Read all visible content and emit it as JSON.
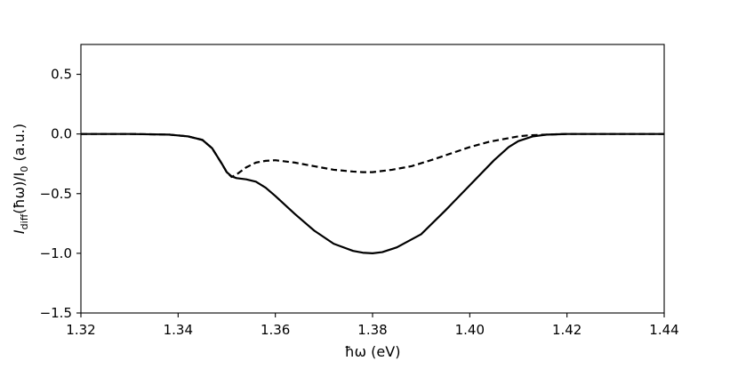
{
  "chart_data": {
    "type": "line",
    "title": "",
    "xlabel": "ħω (eV)",
    "ylabel_parts": {
      "main": "I",
      "main_sub": "diff",
      "middle": "(ħω)/I",
      "middle_sub": "0",
      "suffix": " (a.u.)"
    },
    "xlim": [
      1.32,
      1.44
    ],
    "ylim": [
      -1.5,
      0.75
    ],
    "xticks": [
      1.32,
      1.34,
      1.36,
      1.38,
      1.4,
      1.42,
      1.44
    ],
    "xtick_labels": [
      "1.32",
      "1.34",
      "1.36",
      "1.38",
      "1.40",
      "1.42",
      "1.44"
    ],
    "yticks": [
      0.5,
      0.0,
      -0.5,
      -1.0,
      -1.5
    ],
    "ytick_labels": [
      "0.5",
      "0.0",
      "−0.5",
      "−1.0",
      "−1.5"
    ],
    "grid": false,
    "legend": "none",
    "series": [
      {
        "style": "solid",
        "color": "#000000",
        "x": [
          1.32,
          1.33,
          1.338,
          1.342,
          1.345,
          1.347,
          1.349,
          1.35,
          1.351,
          1.352,
          1.354,
          1.356,
          1.358,
          1.36,
          1.364,
          1.368,
          1.372,
          1.376,
          1.378,
          1.38,
          1.382,
          1.385,
          1.39,
          1.395,
          1.4,
          1.405,
          1.408,
          1.41,
          1.413,
          1.416,
          1.42,
          1.43,
          1.44
        ],
        "y": [
          0.0,
          0.0,
          -0.005,
          -0.02,
          -0.05,
          -0.12,
          -0.25,
          -0.32,
          -0.355,
          -0.37,
          -0.38,
          -0.4,
          -0.45,
          -0.52,
          -0.67,
          -0.81,
          -0.92,
          -0.98,
          -0.995,
          -1.0,
          -0.99,
          -0.95,
          -0.84,
          -0.64,
          -0.43,
          -0.22,
          -0.11,
          -0.06,
          -0.02,
          -0.005,
          0.0,
          0.0,
          0.0
        ]
      },
      {
        "style": "dashed",
        "color": "#000000",
        "x": [
          1.32,
          1.33,
          1.338,
          1.342,
          1.345,
          1.347,
          1.349,
          1.35,
          1.351,
          1.352,
          1.354,
          1.356,
          1.358,
          1.36,
          1.364,
          1.368,
          1.372,
          1.376,
          1.378,
          1.38,
          1.384,
          1.388,
          1.392,
          1.396,
          1.4,
          1.404,
          1.408,
          1.41,
          1.412,
          1.416,
          1.42,
          1.43,
          1.44
        ],
        "y": [
          0.0,
          0.0,
          -0.005,
          -0.02,
          -0.05,
          -0.12,
          -0.25,
          -0.32,
          -0.36,
          -0.34,
          -0.28,
          -0.24,
          -0.225,
          -0.22,
          -0.24,
          -0.27,
          -0.3,
          -0.315,
          -0.32,
          -0.32,
          -0.3,
          -0.27,
          -0.22,
          -0.165,
          -0.11,
          -0.065,
          -0.035,
          -0.02,
          -0.012,
          -0.005,
          0.0,
          0.0,
          0.0
        ]
      }
    ]
  }
}
